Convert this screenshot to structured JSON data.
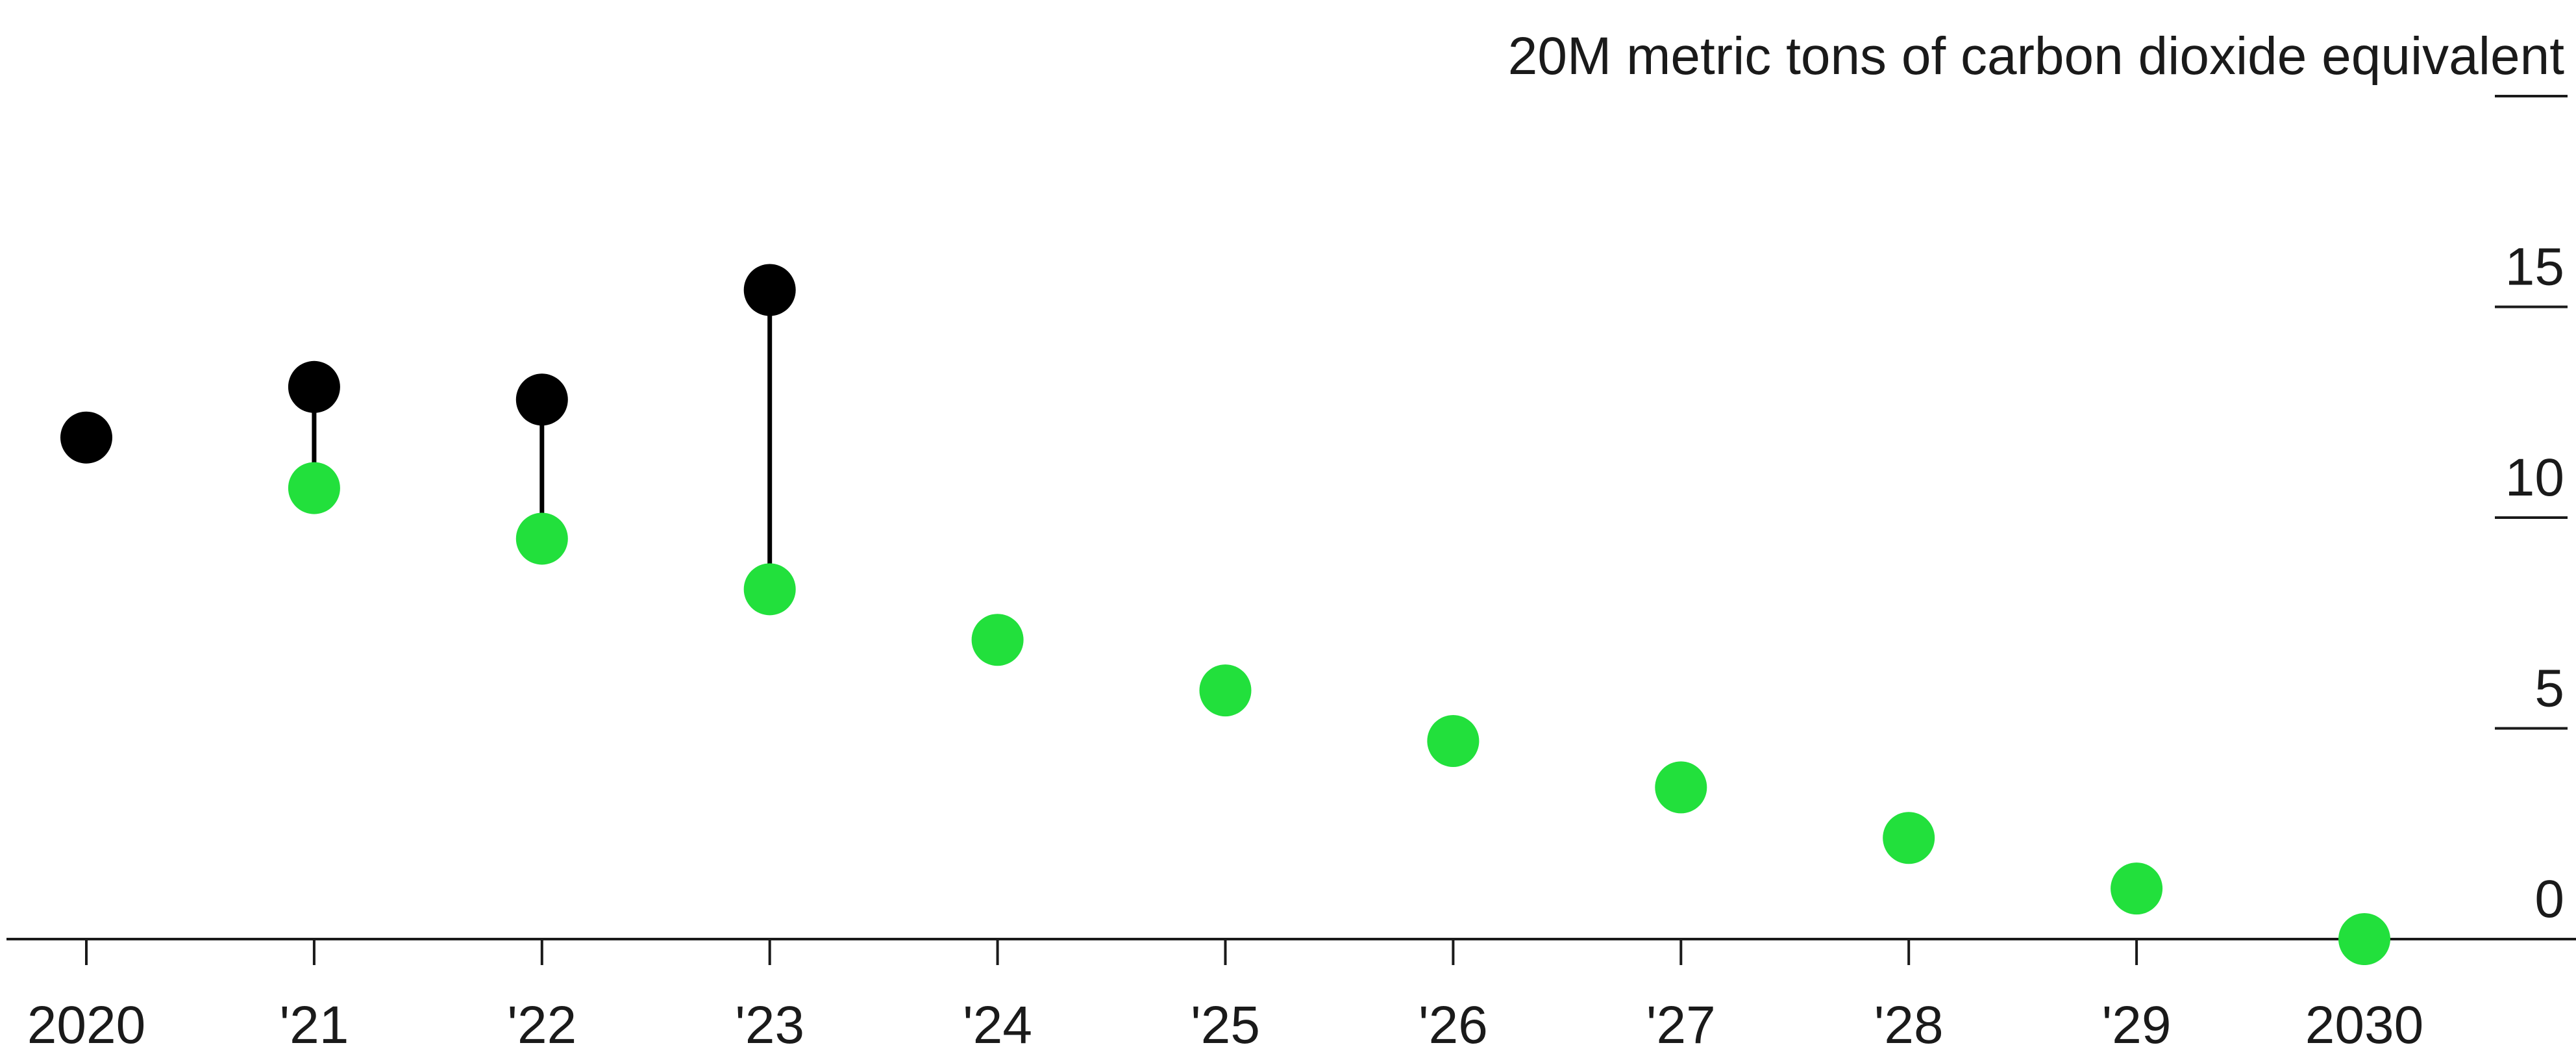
{
  "chart_data": {
    "type": "scatter",
    "title": "",
    "xlabel": "",
    "ylabel": "20M metric tons of carbon dioxide equivalent",
    "y_axis_position": "right",
    "ylim": [
      0,
      20
    ],
    "yticks": [
      0,
      5,
      10,
      15,
      20
    ],
    "ytick_labels": [
      "0",
      "5",
      "10",
      "15",
      "20M metric tons of carbon dioxide equivalent"
    ],
    "xticks": [
      2020,
      2021,
      2022,
      2023,
      2024,
      2025,
      2026,
      2027,
      2028,
      2029,
      2030
    ],
    "xtick_labels": [
      "2020",
      "'21",
      "'22",
      "'23",
      "'24",
      "'25",
      "'26",
      "'27",
      "'28",
      "'29",
      "2030"
    ],
    "grid": false,
    "legend": "none",
    "colors": {
      "actual": "#000000",
      "target": "#22e03c",
      "connector": "#000000",
      "axis": "#1a1a1a"
    },
    "series": [
      {
        "values": [
          {
            "x": 2020,
            "y": 11.9
          },
          {
            "x": 2021,
            "y": 13.1
          },
          {
            "x": 2022,
            "y": 12.8
          },
          {
            "x": 2023,
            "y": 15.4
          }
        ]
      },
      {
        "values": [
          {
            "x": 2021,
            "y": 10.7
          },
          {
            "x": 2022,
            "y": 9.5
          },
          {
            "x": 2023,
            "y": 8.3
          },
          {
            "x": 2024,
            "y": 7.1
          },
          {
            "x": 2025,
            "y": 5.9
          },
          {
            "x": 2026,
            "y": 4.7
          },
          {
            "x": 2027,
            "y": 3.6
          },
          {
            "x": 2028,
            "y": 2.4
          },
          {
            "x": 2029,
            "y": 1.2
          },
          {
            "x": 2030,
            "y": 0
          }
        ]
      }
    ]
  }
}
